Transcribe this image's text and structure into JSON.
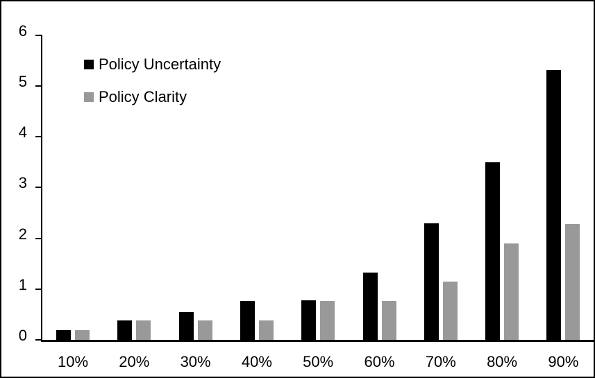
{
  "chart_data": {
    "type": "bar",
    "title": "",
    "xlabel": "",
    "ylabel": "",
    "categories": [
      "10%",
      "20%",
      "30%",
      "40%",
      "50%",
      "60%",
      "70%",
      "80%",
      "90%"
    ],
    "series": [
      {
        "name": "Policy Uncertainty",
        "color": "#000000",
        "values": [
          0.19,
          0.38,
          0.55,
          0.76,
          0.78,
          1.33,
          2.3,
          3.5,
          5.32
        ]
      },
      {
        "name": "Policy Clarity",
        "color": "#999999",
        "values": [
          0.19,
          0.38,
          0.38,
          0.38,
          0.76,
          0.76,
          1.15,
          1.9,
          2.28
        ]
      }
    ],
    "ylim": [
      0,
      6
    ],
    "y_ticks": [
      0,
      1,
      2,
      3,
      4,
      5,
      6
    ],
    "grid": false,
    "legend_position": "top-left-inside",
    "axis_color": "#000000",
    "background_color": "#ffffff",
    "border_color": "#000000"
  }
}
